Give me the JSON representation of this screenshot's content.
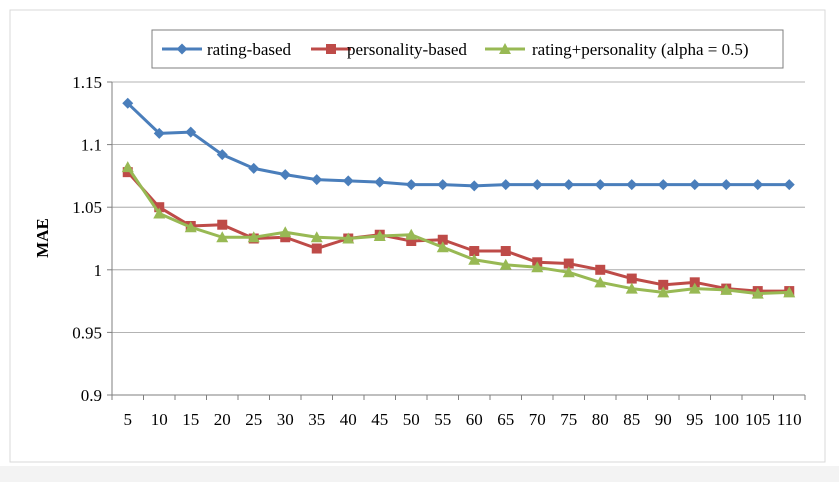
{
  "chart_data": {
    "type": "line",
    "title": "",
    "xlabel": "",
    "ylabel": "MAE",
    "categories": [
      "5",
      "10",
      "15",
      "20",
      "25",
      "30",
      "35",
      "40",
      "45",
      "50",
      "55",
      "60",
      "65",
      "70",
      "75",
      "80",
      "85",
      "90",
      "95",
      "100",
      "105",
      "110"
    ],
    "y_ticks": [
      "0.9",
      "0.95",
      "1",
      "1.05",
      "1.1",
      "1.15"
    ],
    "ylim": [
      0.9,
      1.15
    ],
    "grid": "horizontal",
    "legend_position": "top",
    "series": [
      {
        "name": "rating-based",
        "color": "#4A7EBB",
        "marker": "diamond",
        "values": [
          1.133,
          1.109,
          1.11,
          1.092,
          1.081,
          1.076,
          1.072,
          1.071,
          1.07,
          1.068,
          1.068,
          1.067,
          1.068,
          1.068,
          1.068,
          1.068,
          1.068,
          1.068,
          1.068,
          1.068,
          1.068,
          1.068
        ]
      },
      {
        "name": "personality-based",
        "color": "#BE4B48",
        "marker": "square",
        "values": [
          1.078,
          1.05,
          1.035,
          1.036,
          1.025,
          1.026,
          1.017,
          1.025,
          1.028,
          1.023,
          1.024,
          1.015,
          1.015,
          1.006,
          1.005,
          1.0,
          0.993,
          0.988,
          0.99,
          0.985,
          0.983,
          0.983
        ]
      },
      {
        "name": "rating+personality (alpha = 0.5)",
        "color": "#98B954",
        "marker": "triangle",
        "values": [
          1.082,
          1.045,
          1.034,
          1.026,
          1.026,
          1.03,
          1.026,
          1.025,
          1.027,
          1.028,
          1.018,
          1.008,
          1.004,
          1.002,
          0.998,
          0.99,
          0.985,
          0.982,
          0.985,
          0.984,
          0.981,
          0.982
        ]
      }
    ]
  }
}
